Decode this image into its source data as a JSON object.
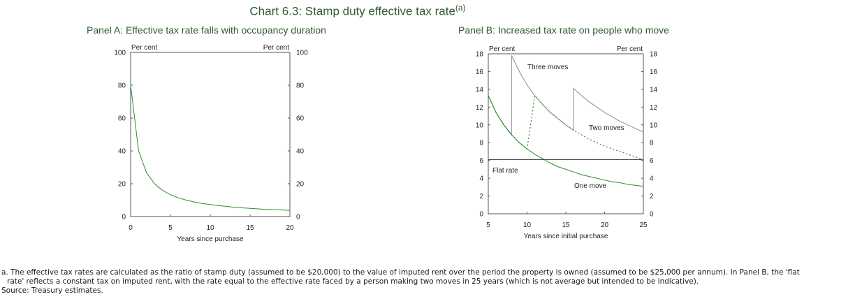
{
  "title": "Chart 6.3: Stamp duty effective tax rate",
  "title_superscript": "(a)",
  "colors": {
    "title": "#2e5a2e",
    "series_green": "#2e8b2e",
    "series_grey": "#8c8c8c",
    "flat_line": "#333333"
  },
  "chart_data": [
    {
      "type": "line",
      "title": "Panel A: Effective tax rate falls with occupancy duration",
      "xlabel": "Years since purchase",
      "ylabel_left": "Per cent",
      "ylabel_right": "Per cent",
      "xlim": [
        0,
        20
      ],
      "ylim": [
        0,
        100
      ],
      "xticks": [
        0,
        5,
        10,
        15,
        20
      ],
      "yticks": [
        0,
        20,
        40,
        60,
        80,
        100
      ],
      "grid": false,
      "series": [
        {
          "style": "solid-green",
          "x": [
            0,
            1,
            2,
            3,
            4,
            5,
            6,
            7,
            8,
            9,
            10,
            11,
            12,
            13,
            14,
            15,
            16,
            17,
            18,
            19,
            20
          ],
          "y": [
            80,
            40,
            26.7,
            20,
            16,
            13.3,
            11.4,
            10,
            8.9,
            8,
            7.3,
            6.7,
            6.2,
            5.7,
            5.3,
            5,
            4.7,
            4.4,
            4.2,
            4,
            3.8
          ]
        }
      ]
    },
    {
      "type": "line",
      "title": "Panel B: Increased tax rate on people who move",
      "xlabel": "Years since initial purchase",
      "ylabel_left": "Per cent",
      "ylabel_right": "Per cent",
      "xlim": [
        5,
        25
      ],
      "ylim": [
        0,
        18
      ],
      "xticks": [
        5,
        10,
        15,
        20,
        25
      ],
      "yticks": [
        0,
        2,
        4,
        6,
        8,
        10,
        12,
        14,
        16,
        18
      ],
      "grid": false,
      "series": [
        {
          "style": "solid-grey",
          "label": "Three moves",
          "x": [
            5,
            6,
            7,
            8,
            8,
            9,
            10,
            11,
            12,
            13,
            14,
            15,
            16,
            16,
            17,
            18,
            19,
            20,
            21,
            22,
            23,
            24,
            25
          ],
          "y": [
            13.3,
            11.4,
            10,
            8.9,
            17.8,
            16,
            14.5,
            13.3,
            12.3,
            11.4,
            10.7,
            10,
            9.4,
            14.1,
            13.3,
            12.6,
            12.0,
            11.4,
            10.9,
            10.4,
            10.0,
            9.6,
            9.2
          ]
        },
        {
          "style": "dotted-green",
          "label": "Two moves",
          "x": [
            5,
            6,
            7,
            8,
            9,
            10,
            10,
            11,
            12,
            13,
            14,
            15,
            16,
            17,
            18,
            19,
            20,
            21,
            22,
            23,
            24,
            25
          ],
          "y": [
            13.3,
            11.4,
            10,
            8.9,
            8,
            7.3,
            7.3,
            13.3,
            12.3,
            11.4,
            10.7,
            10,
            9.4,
            8.9,
            8.4,
            8.0,
            7.6,
            7.3,
            7.0,
            6.7,
            6.4,
            6.1
          ]
        },
        {
          "style": "solid-green",
          "label": "One move",
          "x": [
            5,
            6,
            7,
            8,
            9,
            10,
            11,
            12,
            13,
            14,
            15,
            16,
            17,
            18,
            19,
            20,
            21,
            22,
            23,
            24,
            25
          ],
          "y": [
            13.3,
            11.4,
            10,
            8.9,
            8,
            7.3,
            6.7,
            6.2,
            5.7,
            5.3,
            5,
            4.7,
            4.4,
            4.2,
            4,
            3.8,
            3.6,
            3.5,
            3.3,
            3.2,
            3.1
          ]
        },
        {
          "style": "flat-dark",
          "label": "Flat rate",
          "x": [
            5,
            25
          ],
          "y": [
            6.1,
            6.1
          ]
        }
      ]
    }
  ],
  "footnote": {
    "line1": "a. The effective tax rates are calculated as the ratio of stamp duty (assumed to be $20,000) to the value of imputed rent over the period the property is owned (assumed to be $25,000 per annum). In Panel B, the 'flat",
    "line2": "rate' reflects a constant tax on imputed rent, with the rate equal to the effective rate faced by a person making two moves in 25 years (which is not average but intended to be indicative).",
    "source": "Source: Treasury estimates."
  }
}
